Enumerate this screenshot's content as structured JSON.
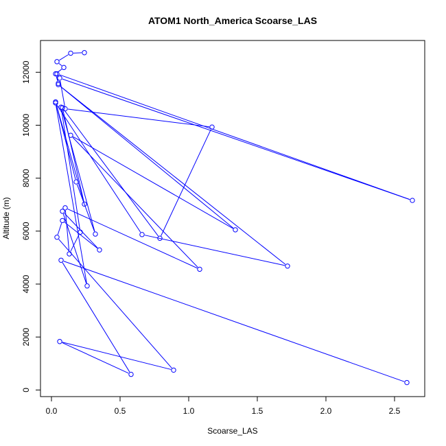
{
  "chart_data": {
    "type": "line",
    "title": "ATOM1 North_America Scoarse_LAS",
    "xlabel": "Scoarse_LAS",
    "ylabel": "Altitude (m)",
    "xlim": [
      -0.08,
      2.72
    ],
    "ylim": [
      -250,
      13200
    ],
    "x_ticks": [
      0,
      0.5,
      1,
      1.5,
      2,
      2.5
    ],
    "x_tick_labels": [
      "0.0",
      "0.5",
      "1.0",
      "1.5",
      "2.0",
      "2.5"
    ],
    "y_ticks": [
      0,
      2000,
      4000,
      6000,
      8000,
      10000,
      12000
    ],
    "y_tick_labels": [
      "0",
      "2000",
      "4000",
      "6000",
      "8000",
      "10000",
      "12000"
    ],
    "grid": false,
    "legend": "none",
    "series_color": "#0000ff",
    "marker": "open-circle",
    "series": [
      {
        "x": [
          2.59,
          0.07,
          0.58,
          0.06,
          0.89,
          0.04,
          0.08,
          0.35,
          0.08,
          0.26,
          0.03,
          0.66,
          1.72,
          0.05,
          1.34,
          0.14,
          1.08,
          0.1,
          0.13,
          0.21,
          0.07,
          0.32,
          0.18,
          0.03,
          0.24,
          0.08,
          0.79,
          1.17,
          0.1,
          0.06,
          2.63,
          0.04,
          0.05,
          0.03,
          0.09,
          0.04,
          0.14,
          0.24
        ],
        "y": [
          280,
          4900,
          590,
          1830,
          750,
          5770,
          6400,
          5290,
          6750,
          3930,
          10840,
          5870,
          4680,
          11530,
          6050,
          9620,
          4560,
          6880,
          5140,
          5960,
          10680,
          5890,
          7860,
          10880,
          7020,
          10660,
          5730,
          9930,
          10620,
          11780,
          7160,
          11940,
          11580,
          11940,
          12180,
          12400,
          12720,
          12740
        ]
      }
    ]
  }
}
